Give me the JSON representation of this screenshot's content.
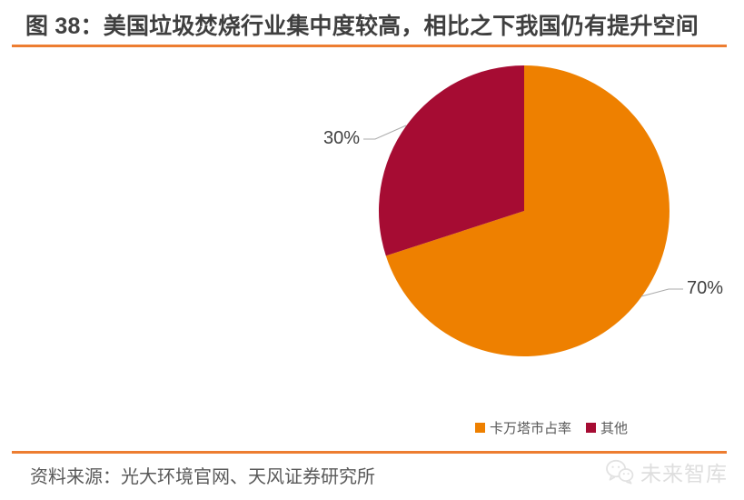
{
  "header": {
    "title": "图 38：美国垃圾焚烧行业集中度较高，相比之下我国仍有提升空间"
  },
  "footer": {
    "source": "资料来源：光大环境官网、天风证券研究所",
    "watermark": "未来智库"
  },
  "colors": {
    "accent_rule": "#ED7D31",
    "title_text": "#3F3F3F",
    "body_text": "#595959",
    "data_label_text": "#404040",
    "leader_line": "#ABABAB",
    "watermark_gray": "#DEDEDE",
    "slice_orange": "#EE8000",
    "slice_red": "#A60C33"
  },
  "chart_data": {
    "type": "pie",
    "title": "图 38：美国垃圾焚烧行业集中度较高，相比之下我国仍有提升空间",
    "slices": [
      {
        "label": "卡万塔市占率",
        "value": 70,
        "display": "70%",
        "color": "#EE8000"
      },
      {
        "label": "其他",
        "value": 30,
        "display": "30%",
        "color": "#A60C33"
      }
    ],
    "start_angle_deg": 0,
    "direction": "clockwise",
    "legend_position": "bottom-center",
    "data_labels": "outside-with-leader-lines",
    "source_note": "资料来源：光大环境官网、天风证券研究所"
  }
}
